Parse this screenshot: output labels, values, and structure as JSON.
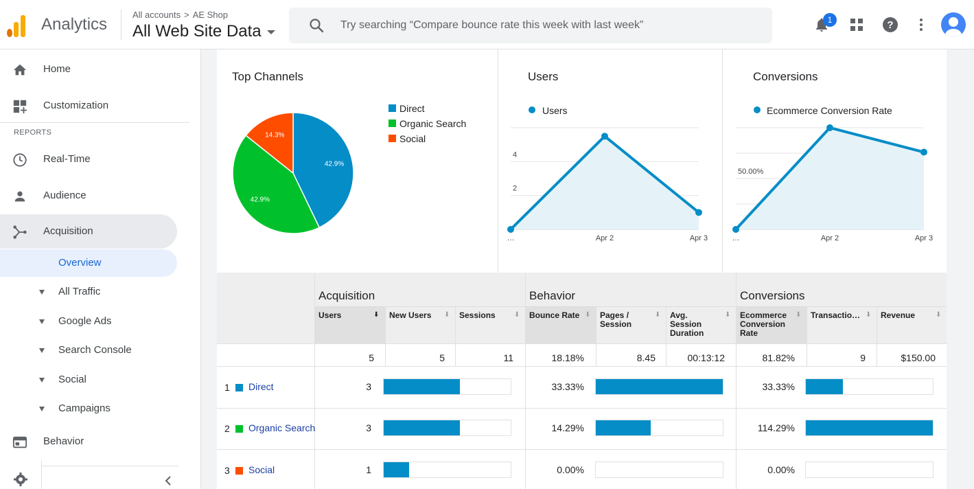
{
  "header": {
    "app_name": "Analytics",
    "breadcrumb_account": "All accounts",
    "breadcrumb_property": "AE Shop",
    "view_name": "All Web Site Data",
    "search_placeholder": "Try searching “Compare bounce rate this week with last week”",
    "notification_count": "1"
  },
  "sidebar": {
    "home": "Home",
    "customization": "Customization",
    "reports_label": "REPORTS",
    "realtime": "Real-Time",
    "audience": "Audience",
    "acquisition": "Acquisition",
    "overview": "Overview",
    "sub_items": [
      "All Traffic",
      "Google Ads",
      "Search Console",
      "Social",
      "Campaigns"
    ],
    "behavior": "Behavior"
  },
  "top_channels": {
    "title": "Top Channels",
    "legend": [
      "Direct",
      "Organic Search",
      "Social"
    ],
    "colors": [
      "#058dc7",
      "#00c12b",
      "#ff4d00"
    ]
  },
  "users_card": {
    "title": "Users",
    "legend": "Users"
  },
  "conversions_card": {
    "title": "Conversions",
    "legend": "Ecommerce Conversion Rate"
  },
  "chart_data": [
    {
      "type": "pie",
      "title": "Top Channels",
      "categories": [
        "Direct",
        "Organic Search",
        "Social"
      ],
      "values": [
        42.9,
        42.9,
        14.3
      ],
      "labels": [
        "42.9%",
        "42.9%",
        "14.3%"
      ]
    },
    {
      "type": "area",
      "title": "Users",
      "x": [
        "…",
        "Apr 2",
        "Apr 3"
      ],
      "series": [
        {
          "name": "Users",
          "values": [
            0,
            5.5,
            1
          ]
        }
      ],
      "yticks": [
        "2",
        "4",
        "6"
      ],
      "ylim": [
        0,
        6
      ]
    },
    {
      "type": "area",
      "title": "Conversions",
      "x": [
        "…",
        "Apr 2",
        "Apr 3"
      ],
      "series": [
        {
          "name": "Ecommerce Conversion Rate",
          "values": [
            0,
            100,
            76
          ]
        }
      ],
      "yticks": [
        "50.00%",
        "100.00%"
      ],
      "ylim": [
        0,
        100
      ]
    }
  ],
  "table": {
    "groups": [
      "Acquisition",
      "Behavior",
      "Conversions"
    ],
    "columns": [
      "Users",
      "New Users",
      "Sessions",
      "Bounce Rate",
      "Pages / Session",
      "Avg. Session Duration",
      "Ecommerce Conversion Rate",
      "Transactio…",
      "Revenue"
    ],
    "totals": [
      "5",
      "5",
      "11",
      "18.18%",
      "8.45",
      "00:13:12",
      "81.82%",
      "9",
      "$150.00"
    ],
    "rows": [
      {
        "num": "1",
        "name": "Direct",
        "users": "3",
        "bounce": "33.33%",
        "conv": "33.33%",
        "users_frac": 0.6,
        "pages_frac": 1.0,
        "conv_frac": 0.29
      },
      {
        "num": "2",
        "name": "Organic Search",
        "users": "3",
        "bounce": "14.29%",
        "conv": "114.29%",
        "users_frac": 0.6,
        "pages_frac": 0.43,
        "conv_frac": 1.0
      },
      {
        "num": "3",
        "name": "Social",
        "users": "1",
        "bounce": "0.00%",
        "conv": "0.00%",
        "users_frac": 0.2,
        "pages_frac": 0.0,
        "conv_frac": 0.0
      }
    ]
  }
}
